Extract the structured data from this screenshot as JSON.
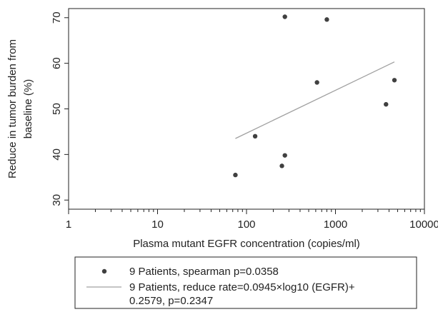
{
  "chart_data": {
    "type": "scatter",
    "xlabel": "Plasma mutant EGFR concentration (copies/ml)",
    "ylabel_lines": [
      "Reduce in tumor burden from",
      "baseline (%)"
    ],
    "x_scale": "log",
    "xlim": [
      1,
      10000
    ],
    "ylim": [
      28,
      72
    ],
    "x_ticks": [
      1,
      10,
      100,
      1000,
      10000
    ],
    "x_tick_labels": [
      "1",
      "10",
      "100",
      "1000",
      "10000"
    ],
    "y_ticks": [
      30,
      40,
      50,
      60,
      70
    ],
    "y_tick_labels": [
      "30",
      "40",
      "50",
      "60",
      "70"
    ],
    "grid": false,
    "series": [
      {
        "type": "scatter",
        "x": [
          75,
          125,
          250,
          270,
          270,
          620,
          800,
          3700,
          4600
        ],
        "y": [
          35.5,
          44,
          37.5,
          70.2,
          39.8,
          55.8,
          69.6,
          51,
          56.3
        ]
      },
      {
        "type": "line",
        "x": [
          75,
          4600
        ],
        "y": [
          43.5,
          60.3
        ]
      }
    ],
    "legend": {
      "placement": "bottom",
      "entries": [
        {
          "marker": "dot",
          "text": [
            "9 Patients, spearman p=0.0358"
          ]
        },
        {
          "marker": "line",
          "text": [
            "9 Patients, reduce rate=0.0945×log10 (EGFR)+",
            "0.2579, p=0.2347"
          ]
        }
      ]
    },
    "colors": {
      "points": "#404040",
      "fit_line": "#a0a0a0",
      "axis": "#222222"
    }
  }
}
